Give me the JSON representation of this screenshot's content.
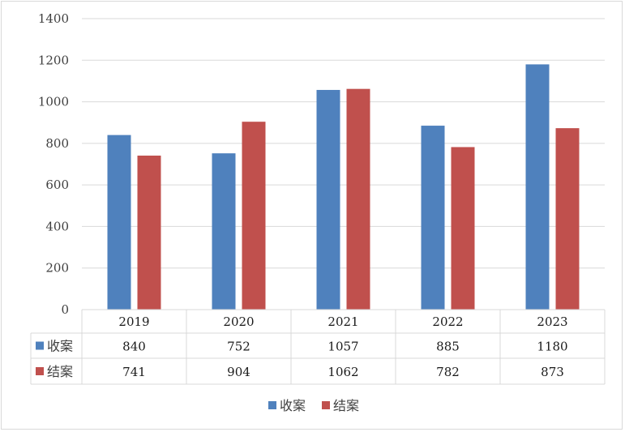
{
  "chart_data": {
    "type": "bar",
    "title": "",
    "xlabel": "",
    "ylabel": "",
    "categories": [
      "2019",
      "2020",
      "2021",
      "2022",
      "2023"
    ],
    "series": [
      {
        "name": "收案",
        "color": "#4f81bd",
        "values": [
          840,
          752,
          1057,
          885,
          1180
        ],
        "labels": [
          "840",
          "752",
          "1057",
          "885",
          "1180"
        ]
      },
      {
        "name": "结案",
        "color": "#c0504d",
        "values": [
          741,
          904,
          1062,
          782,
          873
        ],
        "labels": [
          "741",
          "904",
          "1062",
          "782",
          "873"
        ]
      }
    ],
    "ylim": [
      0,
      1400
    ],
    "yticks": [
      0,
      200,
      400,
      600,
      800,
      1000,
      1200,
      1400
    ],
    "ytick_labels": [
      "0",
      "200",
      "400",
      "600",
      "800",
      "1000",
      "1200",
      "1400"
    ],
    "grid": true,
    "legend": "bottom",
    "data_table": true
  }
}
